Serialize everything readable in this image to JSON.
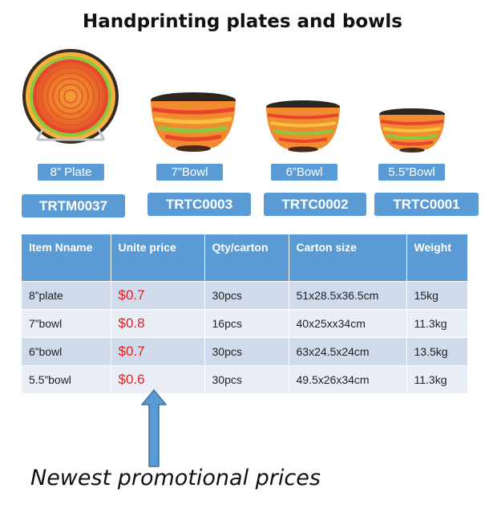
{
  "title": "Handprinting plates and bowls",
  "products": [
    {
      "size": "8” Plate",
      "code": "TRTM0037",
      "icon": "striped-plate-icon"
    },
    {
      "size": "7”Bowl",
      "code": "TRTC0003",
      "icon": "striped-bowl-icon"
    },
    {
      "size": "6”Bowl",
      "code": "TRTC0002",
      "icon": "striped-bowl-icon"
    },
    {
      "size": "5.5”Bowl",
      "code": "TRTC0001",
      "icon": "striped-bowl-icon"
    }
  ],
  "table": {
    "headers": [
      "Item Nname",
      "Unite price",
      "Qty/carton",
      "Carton size",
      "Weight"
    ],
    "rows": [
      [
        "8”plate",
        "$0.7",
        "30pcs",
        "51x28.5x36.5cm",
        "15kg"
      ],
      [
        "7”bowl",
        "$0.8",
        "16pcs",
        "40x25xx34cm",
        "11.3kg"
      ],
      [
        "6”bowl",
        "$0.7",
        "30pcs",
        "63x24.5x24cm",
        "13.5kg"
      ],
      [
        "5.5”bowl",
        "$0.6",
        "30pcs",
        "49.5x26x34cm",
        "11.3kg"
      ]
    ]
  },
  "promo_text": "Newest promotional prices",
  "colors": {
    "header_blue": "#5b9bd5",
    "price_red": "#e02020",
    "row_dark": "#cfdaea",
    "row_light": "#e9eef6"
  }
}
